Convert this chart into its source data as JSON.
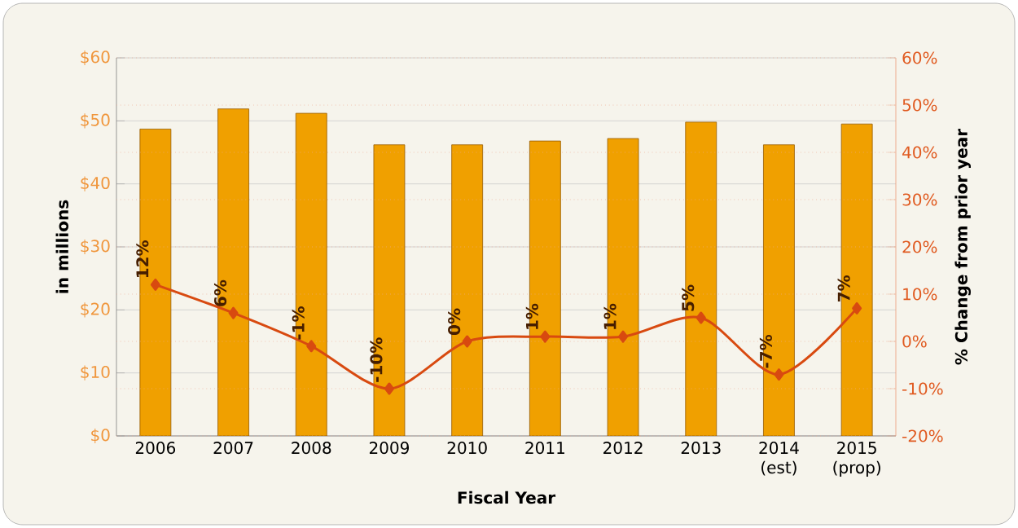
{
  "chart_data": {
    "type": "bar",
    "xlabel": "Fiscal Year",
    "ylabel": "in millions",
    "y2label": "% Change from prior year",
    "categories": [
      "2006",
      "2007",
      "2008",
      "2009",
      "2010",
      "2011",
      "2012",
      "2013",
      "2014 (est)",
      "2015 (prop)"
    ],
    "series": [
      {
        "color": "#f0a000",
        "values": [
          48.7,
          51.9,
          51.2,
          46.2,
          46.2,
          46.8,
          47.2,
          49.8,
          46.2,
          49.5
        ]
      },
      {
        "type": "line",
        "axis": "y2",
        "color": "#d84a10",
        "marker": "diamond",
        "line_style": "solid",
        "values": [
          12,
          6,
          -1,
          -10,
          0,
          1,
          1,
          5,
          -7,
          7
        ],
        "value_labels": [
          "12%",
          "6%",
          "-1%",
          "-10%",
          "0%",
          "1%",
          "1%",
          "5%",
          "-7%",
          "7%"
        ]
      }
    ],
    "ylim": [
      0,
      60
    ],
    "yticks": [
      {
        "value": 0,
        "label": "$0"
      },
      {
        "value": 10,
        "label": "$10"
      },
      {
        "value": 20,
        "label": "$20"
      },
      {
        "value": 30,
        "label": "$30"
      },
      {
        "value": 40,
        "label": "$40"
      },
      {
        "value": 50,
        "label": "$50"
      },
      {
        "value": 60,
        "label": "$60"
      }
    ],
    "y2lim": [
      -20,
      60
    ],
    "y2ticks": [
      {
        "value": -20,
        "label": "-20%"
      },
      {
        "value": -10,
        "label": "-10%"
      },
      {
        "value": 0,
        "label": "0%"
      },
      {
        "value": 10,
        "label": "10%"
      },
      {
        "value": 20,
        "label": "20%"
      },
      {
        "value": 30,
        "label": "30%"
      },
      {
        "value": 40,
        "label": "40%"
      },
      {
        "value": 50,
        "label": "50%"
      },
      {
        "value": 60,
        "label": "60%"
      }
    ],
    "grid": "y"
  }
}
